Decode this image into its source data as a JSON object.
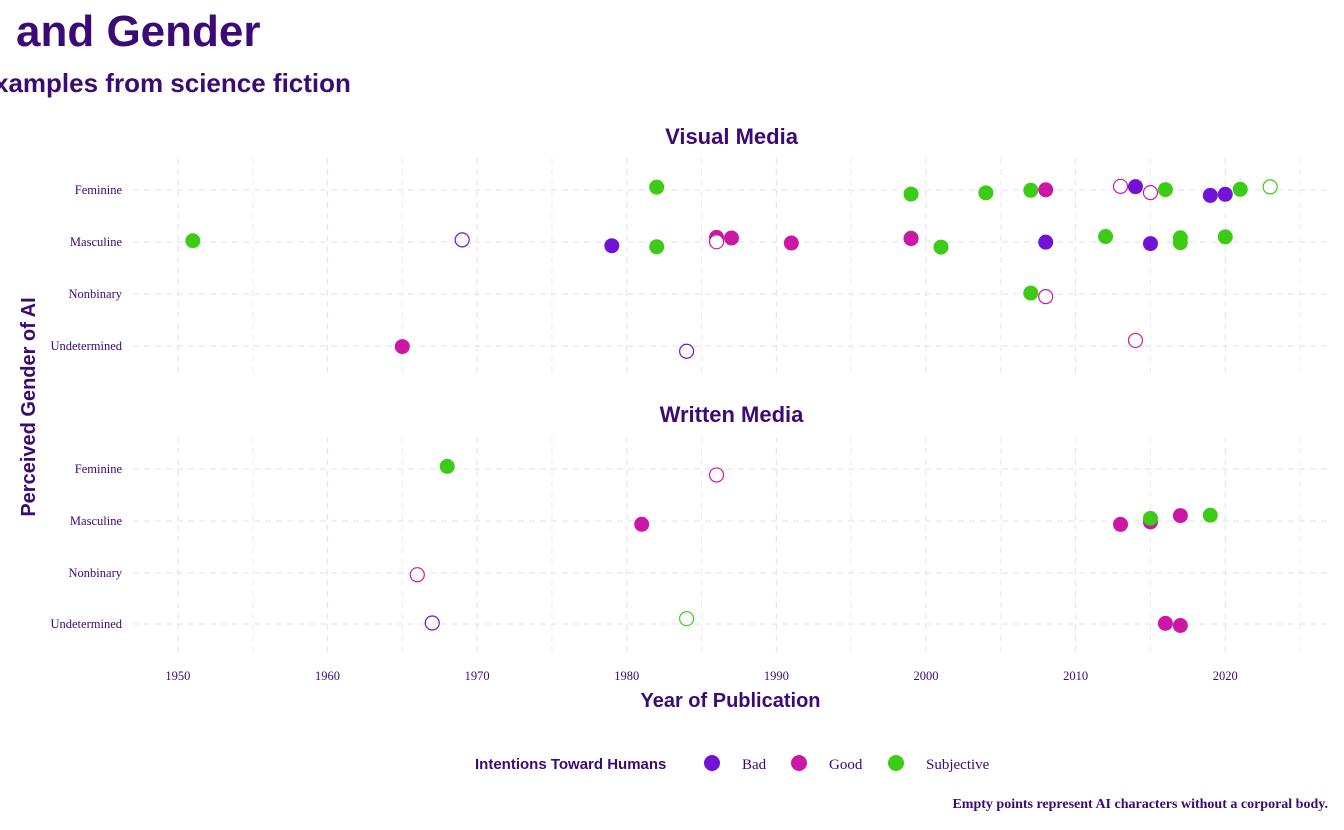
{
  "title": "and Gender",
  "subtitle": "xamples from science fiction",
  "caption": "Empty points represent AI characters without a corporal body.",
  "chart_data": {
    "type": "scatter",
    "xlabel": "Year of Publication",
    "ylabel": "Perceived Gender of AI",
    "xlim": [
      1947,
      2027
    ],
    "x_ticks": [
      1950,
      1960,
      1970,
      1980,
      1990,
      2000,
      2010,
      2020
    ],
    "y_categories": [
      "Feminine",
      "Masculine",
      "Nonbinary",
      "Undetermined"
    ],
    "grid": true,
    "legend": {
      "title": "Intentions Toward Humans",
      "position": "bottom",
      "items": [
        {
          "label": "Bad",
          "color": "#7212d6"
        },
        {
          "label": "Good",
          "color": "#cc16a6"
        },
        {
          "label": "Subjective",
          "color": "#3ccc17"
        }
      ]
    },
    "panels": [
      {
        "title": "Visual Media",
        "points": [
          {
            "x": 1951,
            "y": "Masculine",
            "intent": "Subjective",
            "filled": true
          },
          {
            "x": 1965,
            "y": "Undetermined",
            "intent": "Good",
            "filled": true
          },
          {
            "x": 1969,
            "y": "Masculine",
            "intent": "Bad",
            "filled": false
          },
          {
            "x": 1979,
            "y": "Masculine",
            "intent": "Bad",
            "filled": true
          },
          {
            "x": 1982,
            "y": "Feminine",
            "intent": "Subjective",
            "filled": true
          },
          {
            "x": 1982,
            "y": "Masculine",
            "intent": "Subjective",
            "filled": true
          },
          {
            "x": 1984,
            "y": "Undetermined",
            "intent": "Bad",
            "filled": false
          },
          {
            "x": 1986,
            "y": "Masculine",
            "intent": "Good",
            "filled": true
          },
          {
            "x": 1986,
            "y": "Masculine",
            "intent": "Good",
            "filled": false
          },
          {
            "x": 1987,
            "y": "Masculine",
            "intent": "Good",
            "filled": true
          },
          {
            "x": 1991,
            "y": "Masculine",
            "intent": "Good",
            "filled": true
          },
          {
            "x": 1999,
            "y": "Feminine",
            "intent": "Subjective",
            "filled": true
          },
          {
            "x": 1999,
            "y": "Masculine",
            "intent": "Subjective",
            "filled": true
          },
          {
            "x": 1999,
            "y": "Masculine",
            "intent": "Good",
            "filled": true
          },
          {
            "x": 2001,
            "y": "Masculine",
            "intent": "Subjective",
            "filled": true
          },
          {
            "x": 2004,
            "y": "Feminine",
            "intent": "Subjective",
            "filled": true
          },
          {
            "x": 2007,
            "y": "Feminine",
            "intent": "Subjective",
            "filled": true
          },
          {
            "x": 2007,
            "y": "Nonbinary",
            "intent": "Subjective",
            "filled": true
          },
          {
            "x": 2008,
            "y": "Feminine",
            "intent": "Good",
            "filled": true
          },
          {
            "x": 2008,
            "y": "Masculine",
            "intent": "Bad",
            "filled": true
          },
          {
            "x": 2008,
            "y": "Nonbinary",
            "intent": "Good",
            "filled": false
          },
          {
            "x": 2012,
            "y": "Masculine",
            "intent": "Subjective",
            "filled": true
          },
          {
            "x": 2013,
            "y": "Feminine",
            "intent": "Good",
            "filled": false
          },
          {
            "x": 2014,
            "y": "Feminine",
            "intent": "Bad",
            "filled": true
          },
          {
            "x": 2014,
            "y": "Undetermined",
            "intent": "Good",
            "filled": false
          },
          {
            "x": 2015,
            "y": "Feminine",
            "intent": "Good",
            "filled": false
          },
          {
            "x": 2015,
            "y": "Masculine",
            "intent": "Bad",
            "filled": true
          },
          {
            "x": 2016,
            "y": "Feminine",
            "intent": "Subjective",
            "filled": true
          },
          {
            "x": 2017,
            "y": "Masculine",
            "intent": "Subjective",
            "filled": true
          },
          {
            "x": 2017,
            "y": "Masculine",
            "intent": "Subjective",
            "filled": true
          },
          {
            "x": 2019,
            "y": "Feminine",
            "intent": "Bad",
            "filled": true
          },
          {
            "x": 2020,
            "y": "Feminine",
            "intent": "Bad",
            "filled": true
          },
          {
            "x": 2020,
            "y": "Masculine",
            "intent": "Subjective",
            "filled": true
          },
          {
            "x": 2021,
            "y": "Feminine",
            "intent": "Subjective",
            "filled": true
          },
          {
            "x": 2023,
            "y": "Feminine",
            "intent": "Subjective",
            "filled": false
          }
        ]
      },
      {
        "title": "Written Media",
        "points": [
          {
            "x": 1966,
            "y": "Nonbinary",
            "intent": "Good",
            "filled": false
          },
          {
            "x": 1967,
            "y": "Undetermined",
            "intent": "Bad",
            "filled": false
          },
          {
            "x": 1968,
            "y": "Feminine",
            "intent": "Subjective",
            "filled": true
          },
          {
            "x": 1981,
            "y": "Masculine",
            "intent": "Good",
            "filled": true
          },
          {
            "x": 1984,
            "y": "Undetermined",
            "intent": "Subjective",
            "filled": false
          },
          {
            "x": 1986,
            "y": "Feminine",
            "intent": "Good",
            "filled": false
          },
          {
            "x": 2013,
            "y": "Masculine",
            "intent": "Good",
            "filled": true
          },
          {
            "x": 2015,
            "y": "Masculine",
            "intent": "Good",
            "filled": true
          },
          {
            "x": 2015,
            "y": "Masculine",
            "intent": "Subjective",
            "filled": true
          },
          {
            "x": 2016,
            "y": "Undetermined",
            "intent": "Good",
            "filled": true
          },
          {
            "x": 2017,
            "y": "Masculine",
            "intent": "Good",
            "filled": true
          },
          {
            "x": 2017,
            "y": "Undetermined",
            "intent": "Good",
            "filled": true
          },
          {
            "x": 2019,
            "y": "Masculine",
            "intent": "Subjective",
            "filled": true
          }
        ]
      }
    ]
  }
}
